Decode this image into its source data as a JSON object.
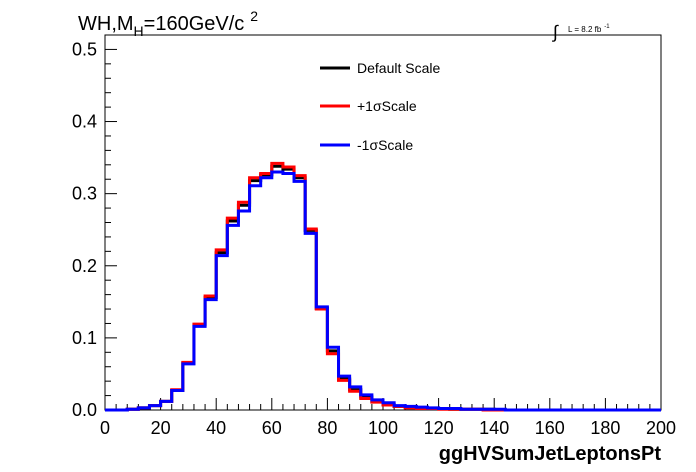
{
  "chart_data": {
    "type": "line",
    "style": "step-histogram",
    "title_main": "WH,M",
    "title_sub": "H",
    "title_rest": "=160GeV/c",
    "title_sup": "2",
    "lumi_label": "L = 8.2 fb",
    "lumi_sup": "-1",
    "xlabel": "ggHVSumJetLeptonsPt",
    "ylabel": "",
    "xlim": [
      0,
      200
    ],
    "ylim": [
      0,
      0.52
    ],
    "x_ticks": [
      "0",
      "20",
      "40",
      "60",
      "80",
      "100",
      "120",
      "140",
      "160",
      "180",
      "200"
    ],
    "y_ticks": [
      "0.0",
      "0.1",
      "0.2",
      "0.3",
      "0.4",
      "0.5"
    ],
    "bin_edges": [
      0,
      4,
      8,
      12,
      16,
      20,
      24,
      28,
      32,
      36,
      40,
      44,
      48,
      52,
      56,
      60,
      64,
      68,
      72,
      76,
      80,
      84,
      88,
      92,
      96,
      100,
      104,
      108,
      112,
      116,
      120,
      124,
      128,
      132,
      136,
      140,
      144,
      148,
      152,
      156,
      160,
      164,
      168,
      172,
      176,
      180,
      184,
      188,
      192,
      196,
      200
    ],
    "series": [
      {
        "name": "Default Scale",
        "color": "#000000",
        "values": [
          0.0,
          0.0,
          0.001,
          0.003,
          0.006,
          0.012,
          0.027,
          0.065,
          0.118,
          0.156,
          0.218,
          0.262,
          0.284,
          0.318,
          0.326,
          0.338,
          0.334,
          0.322,
          0.249,
          0.141,
          0.082,
          0.043,
          0.028,
          0.018,
          0.012,
          0.008,
          0.005,
          0.004,
          0.003,
          0.002,
          0.002,
          0.001,
          0.001,
          0.001,
          0.001,
          0.0,
          0.0,
          0.0,
          0.0,
          0.0,
          0.0,
          0.0,
          0.0,
          0.0,
          0.0,
          0.0,
          0.0,
          0.0,
          0.0,
          0.0
        ]
      },
      {
        "name": "+1σScale",
        "color": "#ff0000",
        "values": [
          0.0,
          0.0,
          0.001,
          0.003,
          0.006,
          0.012,
          0.028,
          0.066,
          0.119,
          0.158,
          0.222,
          0.266,
          0.288,
          0.322,
          0.328,
          0.342,
          0.337,
          0.325,
          0.251,
          0.14,
          0.078,
          0.041,
          0.026,
          0.016,
          0.011,
          0.007,
          0.005,
          0.003,
          0.002,
          0.002,
          0.001,
          0.001,
          0.001,
          0.001,
          0.0,
          0.0,
          0.0,
          0.0,
          0.0,
          0.0,
          0.0,
          0.0,
          0.0,
          0.0,
          0.0,
          0.0,
          0.0,
          0.0,
          0.0,
          0.0
        ]
      },
      {
        "name": "-1σScale",
        "color": "#0000ff",
        "values": [
          0.0,
          0.0,
          0.001,
          0.003,
          0.006,
          0.012,
          0.027,
          0.064,
          0.116,
          0.153,
          0.214,
          0.256,
          0.276,
          0.311,
          0.322,
          0.33,
          0.328,
          0.317,
          0.245,
          0.143,
          0.087,
          0.047,
          0.032,
          0.021,
          0.014,
          0.01,
          0.006,
          0.005,
          0.004,
          0.003,
          0.002,
          0.002,
          0.001,
          0.001,
          0.001,
          0.001,
          0.0,
          0.0,
          0.0,
          0.0,
          0.0,
          0.0,
          0.0,
          0.0,
          0.0,
          0.0,
          0.0,
          0.0,
          0.0,
          0.0
        ]
      }
    ],
    "legend_position": "top-center",
    "grid": false
  }
}
